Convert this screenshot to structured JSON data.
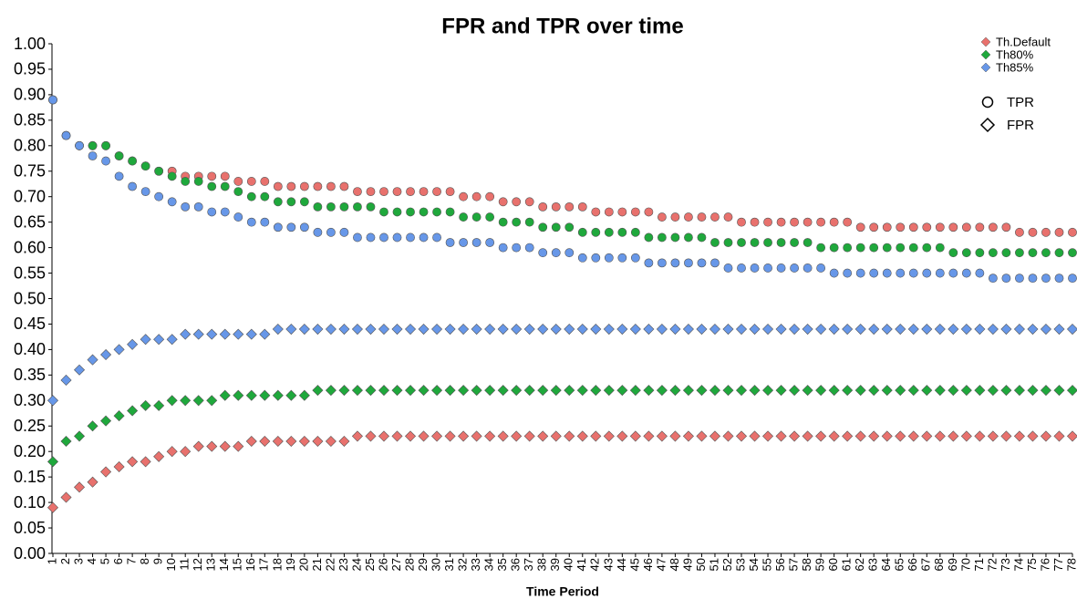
{
  "chart_data": {
    "type": "scatter",
    "title": "FPR and TPR over time",
    "x_label": "Time Period",
    "x": [
      1,
      2,
      3,
      4,
      5,
      6,
      7,
      8,
      9,
      10,
      11,
      12,
      13,
      14,
      15,
      16,
      17,
      18,
      19,
      20,
      21,
      22,
      23,
      24,
      25,
      26,
      27,
      28,
      29,
      30,
      31,
      32,
      33,
      34,
      35,
      36,
      37,
      38,
      39,
      40,
      41,
      42,
      43,
      44,
      45,
      46,
      47,
      48,
      49,
      50,
      51,
      52,
      53,
      54,
      55,
      56,
      57,
      58,
      59,
      60,
      61,
      62,
      63,
      64,
      65,
      66,
      67,
      68,
      69,
      70,
      71,
      72,
      73,
      74,
      75,
      76,
      77,
      78
    ],
    "xlim": [
      1,
      78
    ],
    "ylim": [
      0,
      1
    ],
    "yticks": [
      {
        "value": 0,
        "label": "0.00"
      },
      {
        "value": 0.05,
        "label": "0.05"
      },
      {
        "value": 0.1,
        "label": "0.10"
      },
      {
        "value": 0.15,
        "label": "0.15"
      },
      {
        "value": 0.2,
        "label": "0.20"
      },
      {
        "value": 0.25,
        "label": "0.25"
      },
      {
        "value": 0.3,
        "label": "0.30"
      },
      {
        "value": 0.35,
        "label": "0.35"
      },
      {
        "value": 0.4,
        "label": "0.40"
      },
      {
        "value": 0.45,
        "label": "0.45"
      },
      {
        "value": 0.5,
        "label": "0.50"
      },
      {
        "value": 0.55,
        "label": "0.55"
      },
      {
        "value": 0.6,
        "label": "0.60"
      },
      {
        "value": 0.65,
        "label": "0.65"
      },
      {
        "value": 0.7,
        "label": "0.70"
      },
      {
        "value": 0.75,
        "label": "0.75"
      },
      {
        "value": 0.8,
        "label": "0.80"
      },
      {
        "value": 0.85,
        "label": "0.85"
      },
      {
        "value": 0.9,
        "label": "0.90"
      },
      {
        "value": 0.95,
        "label": "0.95"
      },
      {
        "value": 1,
        "label": "1.00"
      }
    ],
    "grid": false,
    "legend": "top-right",
    "measures": {
      "tpr": {
        "label": "TPR",
        "marker": "circle"
      },
      "fpr": {
        "label": "FPR",
        "marker": "diamond"
      }
    },
    "series": [
      {
        "name": "Th.Default",
        "color": "#e8716d",
        "tpr": [
          0.89,
          0.82,
          0.8,
          0.8,
          0.8,
          0.78,
          0.77,
          0.76,
          0.75,
          0.75,
          0.74,
          0.74,
          0.74,
          0.74,
          0.73,
          0.73,
          0.73,
          0.72,
          0.72,
          0.72,
          0.72,
          0.72,
          0.72,
          0.71,
          0.71,
          0.71,
          0.71,
          0.71,
          0.71,
          0.71,
          0.71,
          0.7,
          0.7,
          0.7,
          0.69,
          0.69,
          0.69,
          0.68,
          0.68,
          0.68,
          0.68,
          0.67,
          0.67,
          0.67,
          0.67,
          0.67,
          0.66,
          0.66,
          0.66,
          0.66,
          0.66,
          0.66,
          0.65,
          0.65,
          0.65,
          0.65,
          0.65,
          0.65,
          0.65,
          0.65,
          0.65,
          0.64,
          0.64,
          0.64,
          0.64,
          0.64,
          0.64,
          0.64,
          0.64,
          0.64,
          0.64,
          0.64,
          0.64,
          0.63,
          0.63,
          0.63,
          0.63,
          0.63
        ],
        "fpr": [
          0.09,
          0.11,
          0.13,
          0.14,
          0.16,
          0.17,
          0.18,
          0.18,
          0.19,
          0.2,
          0.2,
          0.21,
          0.21,
          0.21,
          0.21,
          0.22,
          0.22,
          0.22,
          0.22,
          0.22,
          0.22,
          0.22,
          0.22,
          0.23,
          0.23,
          0.23,
          0.23,
          0.23,
          0.23,
          0.23,
          0.23,
          0.23,
          0.23,
          0.23,
          0.23,
          0.23,
          0.23,
          0.23,
          0.23,
          0.23,
          0.23,
          0.23,
          0.23,
          0.23,
          0.23,
          0.23,
          0.23,
          0.23,
          0.23,
          0.23,
          0.23,
          0.23,
          0.23,
          0.23,
          0.23,
          0.23,
          0.23,
          0.23,
          0.23,
          0.23,
          0.23,
          0.23,
          0.23,
          0.23,
          0.23,
          0.23,
          0.23,
          0.23,
          0.23,
          0.23,
          0.23,
          0.23,
          0.23,
          0.23,
          0.23,
          0.23,
          0.23,
          0.23
        ]
      },
      {
        "name": "Th80%",
        "color": "#1fa83c",
        "tpr": [
          0.89,
          0.82,
          0.8,
          0.8,
          0.8,
          0.78,
          0.77,
          0.76,
          0.75,
          0.74,
          0.73,
          0.73,
          0.72,
          0.72,
          0.71,
          0.7,
          0.7,
          0.69,
          0.69,
          0.69,
          0.68,
          0.68,
          0.68,
          0.68,
          0.68,
          0.67,
          0.67,
          0.67,
          0.67,
          0.67,
          0.67,
          0.66,
          0.66,
          0.66,
          0.65,
          0.65,
          0.65,
          0.64,
          0.64,
          0.64,
          0.63,
          0.63,
          0.63,
          0.63,
          0.63,
          0.62,
          0.62,
          0.62,
          0.62,
          0.62,
          0.61,
          0.61,
          0.61,
          0.61,
          0.61,
          0.61,
          0.61,
          0.61,
          0.6,
          0.6,
          0.6,
          0.6,
          0.6,
          0.6,
          0.6,
          0.6,
          0.6,
          0.6,
          0.59,
          0.59,
          0.59,
          0.59,
          0.59,
          0.59,
          0.59,
          0.59,
          0.59,
          0.59
        ],
        "fpr": [
          0.18,
          0.22,
          0.23,
          0.25,
          0.26,
          0.27,
          0.28,
          0.29,
          0.29,
          0.3,
          0.3,
          0.3,
          0.3,
          0.31,
          0.31,
          0.31,
          0.31,
          0.31,
          0.31,
          0.31,
          0.32,
          0.32,
          0.32,
          0.32,
          0.32,
          0.32,
          0.32,
          0.32,
          0.32,
          0.32,
          0.32,
          0.32,
          0.32,
          0.32,
          0.32,
          0.32,
          0.32,
          0.32,
          0.32,
          0.32,
          0.32,
          0.32,
          0.32,
          0.32,
          0.32,
          0.32,
          0.32,
          0.32,
          0.32,
          0.32,
          0.32,
          0.32,
          0.32,
          0.32,
          0.32,
          0.32,
          0.32,
          0.32,
          0.32,
          0.32,
          0.32,
          0.32,
          0.32,
          0.32,
          0.32,
          0.32,
          0.32,
          0.32,
          0.32,
          0.32,
          0.32,
          0.32,
          0.32,
          0.32,
          0.32,
          0.32,
          0.32,
          0.32
        ]
      },
      {
        "name": "Th85%",
        "color": "#6797e8",
        "tpr": [
          0.89,
          0.82,
          0.8,
          0.78,
          0.77,
          0.74,
          0.72,
          0.71,
          0.7,
          0.69,
          0.68,
          0.68,
          0.67,
          0.67,
          0.66,
          0.65,
          0.65,
          0.64,
          0.64,
          0.64,
          0.63,
          0.63,
          0.63,
          0.62,
          0.62,
          0.62,
          0.62,
          0.62,
          0.62,
          0.62,
          0.61,
          0.61,
          0.61,
          0.61,
          0.6,
          0.6,
          0.6,
          0.59,
          0.59,
          0.59,
          0.58,
          0.58,
          0.58,
          0.58,
          0.58,
          0.57,
          0.57,
          0.57,
          0.57,
          0.57,
          0.57,
          0.56,
          0.56,
          0.56,
          0.56,
          0.56,
          0.56,
          0.56,
          0.56,
          0.55,
          0.55,
          0.55,
          0.55,
          0.55,
          0.55,
          0.55,
          0.55,
          0.55,
          0.55,
          0.55,
          0.55,
          0.54,
          0.54,
          0.54,
          0.54,
          0.54,
          0.54,
          0.54
        ],
        "fpr": [
          0.3,
          0.34,
          0.36,
          0.38,
          0.39,
          0.4,
          0.41,
          0.42,
          0.42,
          0.42,
          0.43,
          0.43,
          0.43,
          0.43,
          0.43,
          0.43,
          0.43,
          0.44,
          0.44,
          0.44,
          0.44,
          0.44,
          0.44,
          0.44,
          0.44,
          0.44,
          0.44,
          0.44,
          0.44,
          0.44,
          0.44,
          0.44,
          0.44,
          0.44,
          0.44,
          0.44,
          0.44,
          0.44,
          0.44,
          0.44,
          0.44,
          0.44,
          0.44,
          0.44,
          0.44,
          0.44,
          0.44,
          0.44,
          0.44,
          0.44,
          0.44,
          0.44,
          0.44,
          0.44,
          0.44,
          0.44,
          0.44,
          0.44,
          0.44,
          0.44,
          0.44,
          0.44,
          0.44,
          0.44,
          0.44,
          0.44,
          0.44,
          0.44,
          0.44,
          0.44,
          0.44,
          0.44,
          0.44,
          0.44,
          0.44,
          0.44,
          0.44,
          0.44
        ]
      }
    ]
  }
}
